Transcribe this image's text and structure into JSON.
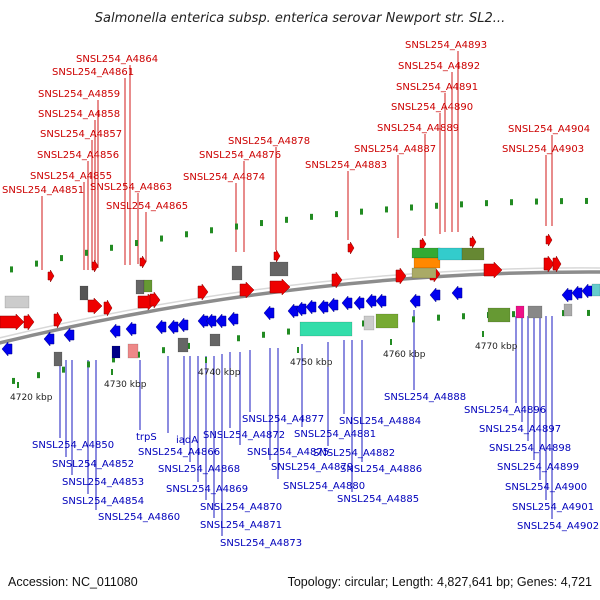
{
  "title": "Salmonella enterica subsp. enterica serovar Newport str. SL2...",
  "footer": {
    "accession": "Accession: NC_011080",
    "topology": "Topology: circular; Length: 4,827,641 bp; Genes: 4,721"
  },
  "colors": {
    "forward": "#ee0000",
    "reverse": "#0000ee",
    "backbone": "#909090",
    "tick": "#228b22",
    "red_label": "#cc0000",
    "blue_label": "#0000bb"
  },
  "ticks": [
    "4720 kbp",
    "4730 kbp",
    "4740 kbp",
    "4750 kbp",
    "4760 kbp",
    "4770 kbp"
  ],
  "forward_labels": [
    "SNSL254_A4864",
    "SNSL254_A4861",
    "SNSL254_A4859",
    "SNSL254_A4858",
    "SNSL254_A4857",
    "SNSL254_A4856",
    "SNSL254_A4855",
    "SNSL254_A4851",
    "SNSL254_A4863",
    "SNSL254_A4865",
    "SNSL254_A4878",
    "SNSL254_A4876",
    "SNSL254_A4874",
    "SNSL254_A4883",
    "SNSL254_A4887",
    "SNSL254_A4889",
    "SNSL254_A4890",
    "SNSL254_A4891",
    "SNSL254_A4892",
    "SNSL254_A4893",
    "SNSL254_A4904",
    "SNSL254_A4903"
  ],
  "reverse_labels": [
    "SNSL254_A4850",
    "SNSL254_A4852",
    "SNSL254_A4853",
    "SNSL254_A4854",
    "SNSL254_A4860",
    "trpS",
    "iadA",
    "SNSL254_A4866",
    "SNSL254_A4868",
    "SNSL254_A4869",
    "SNSL254_A4870",
    "SNSL254_A4871",
    "SNSL254_A4873",
    "SNSL254_A4872",
    "SNSL254_A4875",
    "SNSL254_A4877",
    "SNSL254_A4879",
    "SNSL254_A4880",
    "SNSL254_A4881",
    "SNSL254_A4882",
    "SNSL254_A4884",
    "SNSL254_A4885",
    "SNSL254_A4886",
    "SNSL254_A4888",
    "SNSL254_A4896",
    "SNSL254_A4897",
    "SNSL254_A4898",
    "SNSL254_A4899",
    "SNSL254_A4900",
    "SNSL254_A4901",
    "SNSL254_A4902"
  ]
}
